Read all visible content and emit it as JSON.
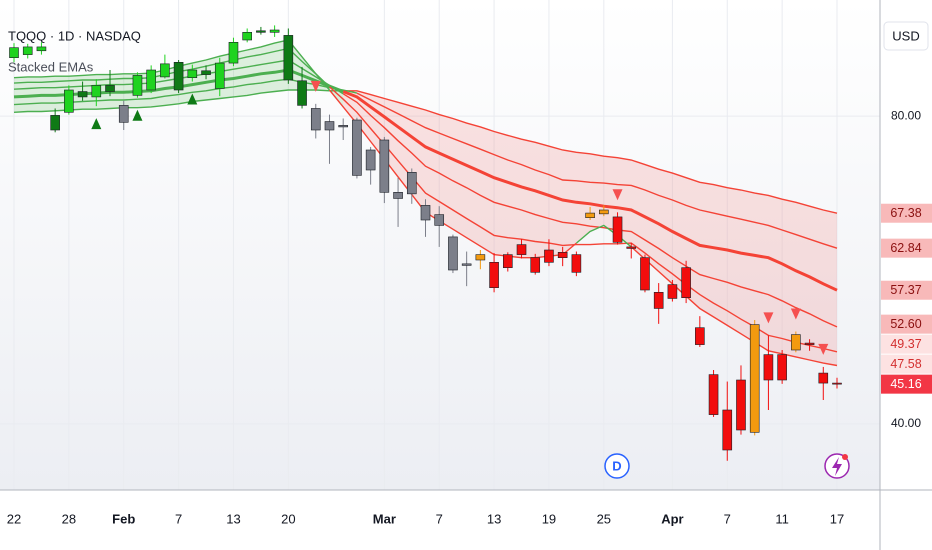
{
  "chart_data": {
    "type": "candlestick",
    "title": "TQQQ · 1D · NASDAQ",
    "subtitle": "Stacked EMAs",
    "currency": "USD",
    "dividend_label": "D",
    "categories": [
      "22",
      null,
      null,
      null,
      "28",
      null,
      null,
      null,
      "Feb",
      null,
      null,
      null,
      "7",
      null,
      null,
      null,
      "13",
      null,
      null,
      null,
      "20",
      null,
      null,
      null,
      null,
      null,
      null,
      "Mar",
      null,
      null,
      null,
      "7",
      null,
      null,
      null,
      "13",
      null,
      null,
      null,
      "19",
      null,
      null,
      null,
      "25",
      null,
      null,
      null,
      null,
      "Apr",
      null,
      null,
      null,
      "7",
      null,
      null,
      null,
      "11",
      null,
      null,
      null,
      "17"
    ],
    "open": [
      87.6,
      88.0,
      89.0,
      80.1,
      80.5,
      83.2,
      82.5,
      84.0,
      81.4,
      82.7,
      83.4,
      85.1,
      87.0,
      85.0,
      85.9,
      83.6,
      86.9,
      89.9,
      91.1,
      90.9,
      90.5,
      84.6,
      81.0,
      79.3,
      78.8,
      79.5,
      73.0,
      76.9,
      70.1,
      69.9,
      68.4,
      65.8,
      64.3,
      60.8,
      61.3,
      61.0,
      60.3,
      62.0,
      61.6,
      61.0,
      61.6,
      59.7,
      66.8,
      67.3,
      66.9,
      63.0,
      61.6,
      57.1,
      56.3,
      56.4,
      52.5,
      46.4,
      41.8,
      45.7,
      38.9,
      49.0,
      45.7,
      49.6,
      50.5,
      46.6,
      45.3
    ],
    "high": [
      89.5,
      89.4,
      89.6,
      81.0,
      84.0,
      84.5,
      84.8,
      86.0,
      82.0,
      85.7,
      86.6,
      88.0,
      87.3,
      86.7,
      86.6,
      87.6,
      90.2,
      91.4,
      91.6,
      91.8,
      91.4,
      86.4,
      81.6,
      80.2,
      79.7,
      79.8,
      76.0,
      77.3,
      72.0,
      73.2,
      69.2,
      68.3,
      64.6,
      62.4,
      62.6,
      62.2,
      62.3,
      64.0,
      62.1,
      64.0,
      63.0,
      62.4,
      68.2,
      68.4,
      67.5,
      63.5,
      62.0,
      58.3,
      58.7,
      61.2,
      54.0,
      47.0,
      45.5,
      47.6,
      53.5,
      51.5,
      49.6,
      52.0,
      51.0,
      47.4,
      46.0
    ],
    "low": [
      87.0,
      87.5,
      88.0,
      77.9,
      80.2,
      82.0,
      81.3,
      82.6,
      78.2,
      82.4,
      83.0,
      84.9,
      83.0,
      84.5,
      84.8,
      82.6,
      86.5,
      89.6,
      90.6,
      90.3,
      84.2,
      81.0,
      77.1,
      73.8,
      76.9,
      71.9,
      71.1,
      68.7,
      65.6,
      68.6,
      64.3,
      63.0,
      59.6,
      57.9,
      60.1,
      57.1,
      59.8,
      61.5,
      59.4,
      60.5,
      60.5,
      59.2,
      66.5,
      67.0,
      63.3,
      61.5,
      57.1,
      53.0,
      55.9,
      55.7,
      50.0,
      40.9,
      35.2,
      38.6,
      38.5,
      41.8,
      45.2,
      49.3,
      49.5,
      43.1,
      44.6
    ],
    "close": [
      88.9,
      89.0,
      88.5,
      78.2,
      83.4,
      82.5,
      84.0,
      83.2,
      79.2,
      85.3,
      86.0,
      86.8,
      83.4,
      86.0,
      85.4,
      86.9,
      89.6,
      90.9,
      90.9,
      91.2,
      84.7,
      81.4,
      78.2,
      78.2,
      78.6,
      72.3,
      75.6,
      70.1,
      69.3,
      72.7,
      66.5,
      67.2,
      60.0,
      60.6,
      62.0,
      57.7,
      62.0,
      63.3,
      59.7,
      62.6,
      62.3,
      62.0,
      67.4,
      67.8,
      63.6,
      62.8,
      57.4,
      55.0,
      58.1,
      60.3,
      50.3,
      41.2,
      36.6,
      39.2,
      52.9,
      45.7,
      49.0,
      51.6,
      50.3,
      45.3,
      45.16
    ],
    "candle_colors": [
      "#1fd31f",
      "#1fd31f",
      "#1fd31f",
      "#0f7a16",
      "#1fd31f",
      "#0f7a16",
      "#1fd31f",
      "#0f7a16",
      "#7c7f8a",
      "#1fd31f",
      "#1fd31f",
      "#1fd31f",
      "#0f7a16",
      "#1fd31f",
      "#0f7a16",
      "#1fd31f",
      "#1fd31f",
      "#1fd31f",
      "#0f7a16",
      "#1fd31f",
      "#0f7a16",
      "#0f7a16",
      "#7c7f8a",
      "#7c7f8a",
      "#7c7f8a",
      "#7c7f8a",
      "#7c7f8a",
      "#7c7f8a",
      "#7c7f8a",
      "#7c7f8a",
      "#7c7f8a",
      "#7c7f8a",
      "#7c7f8a",
      "#7c7f8a",
      "#f39a0f",
      "#f20d0d",
      "#f20d0d",
      "#f20d0d",
      "#f20d0d",
      "#f20d0d",
      "#f20d0d",
      "#f20d0d",
      "#f39a0f",
      "#f39a0f",
      "#f20d0d",
      "#f20d0d",
      "#f20d0d",
      "#f20d0d",
      "#f20d0d",
      "#f20d0d",
      "#f20d0d",
      "#f20d0d",
      "#f20d0d",
      "#f20d0d",
      "#f39a0f",
      "#f20d0d",
      "#f20d0d",
      "#f39a0f",
      "#f20d0d",
      "#f20d0d",
      "#f20d0d"
    ],
    "signals": [
      null,
      null,
      null,
      null,
      null,
      null,
      "up",
      null,
      null,
      "up",
      null,
      null,
      null,
      "up",
      null,
      null,
      null,
      null,
      null,
      null,
      null,
      null,
      "down",
      null,
      null,
      null,
      null,
      null,
      null,
      null,
      null,
      null,
      null,
      null,
      null,
      null,
      null,
      null,
      null,
      null,
      null,
      null,
      null,
      null,
      "down",
      null,
      null,
      null,
      null,
      null,
      null,
      null,
      null,
      null,
      null,
      "down",
      null,
      "down",
      null,
      "down",
      null
    ],
    "signal_colors": {
      "up": "#0f7a16",
      "down": "#f55050"
    },
    "ema_colors": {
      "bull": "#4caf50",
      "bear": "#f44336"
    },
    "ema_fill": {
      "bull": "rgba(76,175,80,0.18)",
      "bear": "rgba(244,67,54,0.14)"
    },
    "series": [
      {
        "values": [
          80.5,
          80.6,
          80.6,
          80.7,
          80.8,
          80.9,
          80.9,
          81.0,
          81.1,
          81.1,
          81.2,
          81.4,
          81.6,
          81.9,
          82.1,
          82.3,
          82.5,
          82.7,
          83.0,
          83.2,
          83.4,
          83.4,
          83.4,
          83.3,
          83.3,
          83.3,
          82.8,
          82.3,
          81.8,
          81.3,
          80.8,
          80.2,
          79.7,
          79.1,
          78.6,
          78.0,
          77.5,
          77.0,
          76.6,
          76.1,
          75.6,
          75.3,
          75.1,
          74.8,
          74.6,
          74.3,
          73.7,
          73.1,
          72.6,
          72.0,
          71.4,
          71.1,
          70.7,
          70.4,
          70.0,
          69.7,
          69.2,
          68.8,
          68.3,
          67.8,
          67.38
        ],
        "value_labels": {
          "60": "67.38"
        }
      },
      {
        "values": [
          81.5,
          81.6,
          81.7,
          81.7,
          81.8,
          81.9,
          82.0,
          82.1,
          82.1,
          82.2,
          82.3,
          82.6,
          82.8,
          83.1,
          83.3,
          83.6,
          83.8,
          84.1,
          84.3,
          84.6,
          84.8,
          84.4,
          84.1,
          83.7,
          83.4,
          83.0,
          82.1,
          81.2,
          80.3,
          79.4,
          78.5,
          77.8,
          77.1,
          76.4,
          75.7,
          75.0,
          74.3,
          73.7,
          73.0,
          72.4,
          71.7,
          71.6,
          71.4,
          71.3,
          71.1,
          71.0,
          70.4,
          69.7,
          69.1,
          68.4,
          67.8,
          67.4,
          67.0,
          66.6,
          66.2,
          65.8,
          65.2,
          64.6,
          64.0,
          63.4,
          62.84
        ],
        "value_labels": {
          "60": "62.84"
        }
      },
      {
        "values": [
          82.5,
          82.6,
          82.7,
          82.7,
          82.8,
          82.9,
          83.0,
          83.1,
          83.1,
          83.2,
          83.3,
          83.6,
          83.8,
          84.1,
          84.4,
          84.7,
          84.9,
          85.2,
          85.5,
          85.7,
          86.0,
          85.3,
          84.6,
          83.9,
          83.2,
          82.5,
          81.2,
          79.9,
          78.6,
          77.3,
          76.0,
          75.2,
          74.4,
          73.6,
          72.8,
          72.0,
          71.4,
          70.8,
          70.3,
          69.7,
          69.1,
          68.8,
          68.6,
          68.3,
          68.1,
          67.8,
          66.9,
          66.0,
          65.0,
          64.1,
          63.2,
          62.9,
          62.6,
          62.2,
          61.9,
          61.6,
          60.8,
          59.9,
          59.1,
          58.2,
          57.37
        ],
        "value_labels": {
          "60": "57.37"
        }
      },
      {
        "values": [
          83.5,
          83.6,
          83.7,
          83.7,
          83.8,
          83.9,
          84.0,
          84.1,
          84.1,
          84.2,
          84.3,
          84.6,
          84.9,
          85.2,
          85.5,
          85.8,
          86.1,
          86.4,
          86.7,
          87.0,
          87.3,
          86.2,
          85.1,
          84.0,
          82.9,
          81.8,
          80.1,
          78.5,
          76.8,
          75.2,
          73.5,
          72.6,
          71.6,
          70.7,
          69.7,
          68.8,
          68.3,
          67.8,
          67.2,
          66.7,
          66.2,
          66.0,
          65.7,
          65.5,
          65.2,
          65.0,
          63.9,
          62.8,
          61.6,
          60.5,
          59.4,
          58.9,
          58.4,
          57.8,
          57.3,
          56.8,
          56.0,
          55.1,
          54.3,
          53.4,
          52.6
        ],
        "value_labels": {
          "60": "52.60"
        }
      },
      {
        "values": [
          84.3,
          84.4,
          84.4,
          84.5,
          84.6,
          84.7,
          84.7,
          84.8,
          84.9,
          84.9,
          85.0,
          85.4,
          85.8,
          86.1,
          86.5,
          86.9,
          87.3,
          87.7,
          88.0,
          88.4,
          88.8,
          87.1,
          85.5,
          83.8,
          82.2,
          80.5,
          78.4,
          76.3,
          74.2,
          72.1,
          70.0,
          68.9,
          67.8,
          66.7,
          65.6,
          64.5,
          64.2,
          64.0,
          63.7,
          63.5,
          63.2,
          63.3,
          63.3,
          63.4,
          63.4,
          63.5,
          62.2,
          60.8,
          59.5,
          58.1,
          56.8,
          55.7,
          54.7,
          53.6,
          52.6,
          51.5,
          51.1,
          50.6,
          50.2,
          49.8,
          49.37
        ],
        "value_labels": {
          "60": "49.37"
        }
      },
      {
        "values": [
          85.0,
          85.1,
          85.1,
          85.2,
          85.2,
          85.3,
          85.4,
          85.4,
          85.5,
          85.5,
          85.6,
          86.0,
          86.5,
          86.9,
          87.3,
          87.8,
          88.2,
          88.6,
          89.0,
          89.5,
          89.9,
          87.7,
          85.5,
          83.4,
          81.2,
          79.0,
          76.7,
          74.4,
          72.1,
          69.8,
          67.5,
          66.4,
          65.3,
          64.2,
          63.1,
          62.0,
          61.8,
          61.6,
          61.6,
          61.8,
          62.0,
          63.5,
          65.0,
          65.8,
          64.5,
          63.0,
          61.4,
          59.8,
          58.2,
          56.6,
          55.0,
          53.9,
          52.8,
          51.7,
          50.6,
          49.5,
          49.1,
          48.7,
          48.3,
          47.9,
          47.58
        ],
        "value_labels": {
          "60": "47.58"
        }
      }
    ],
    "ylim": [
      31.4,
      95.1
    ],
    "yticks": [
      {
        "value": 40,
        "label": "40.00"
      },
      {
        "value": 80,
        "label": "80.00"
      }
    ],
    "grid": true
  }
}
